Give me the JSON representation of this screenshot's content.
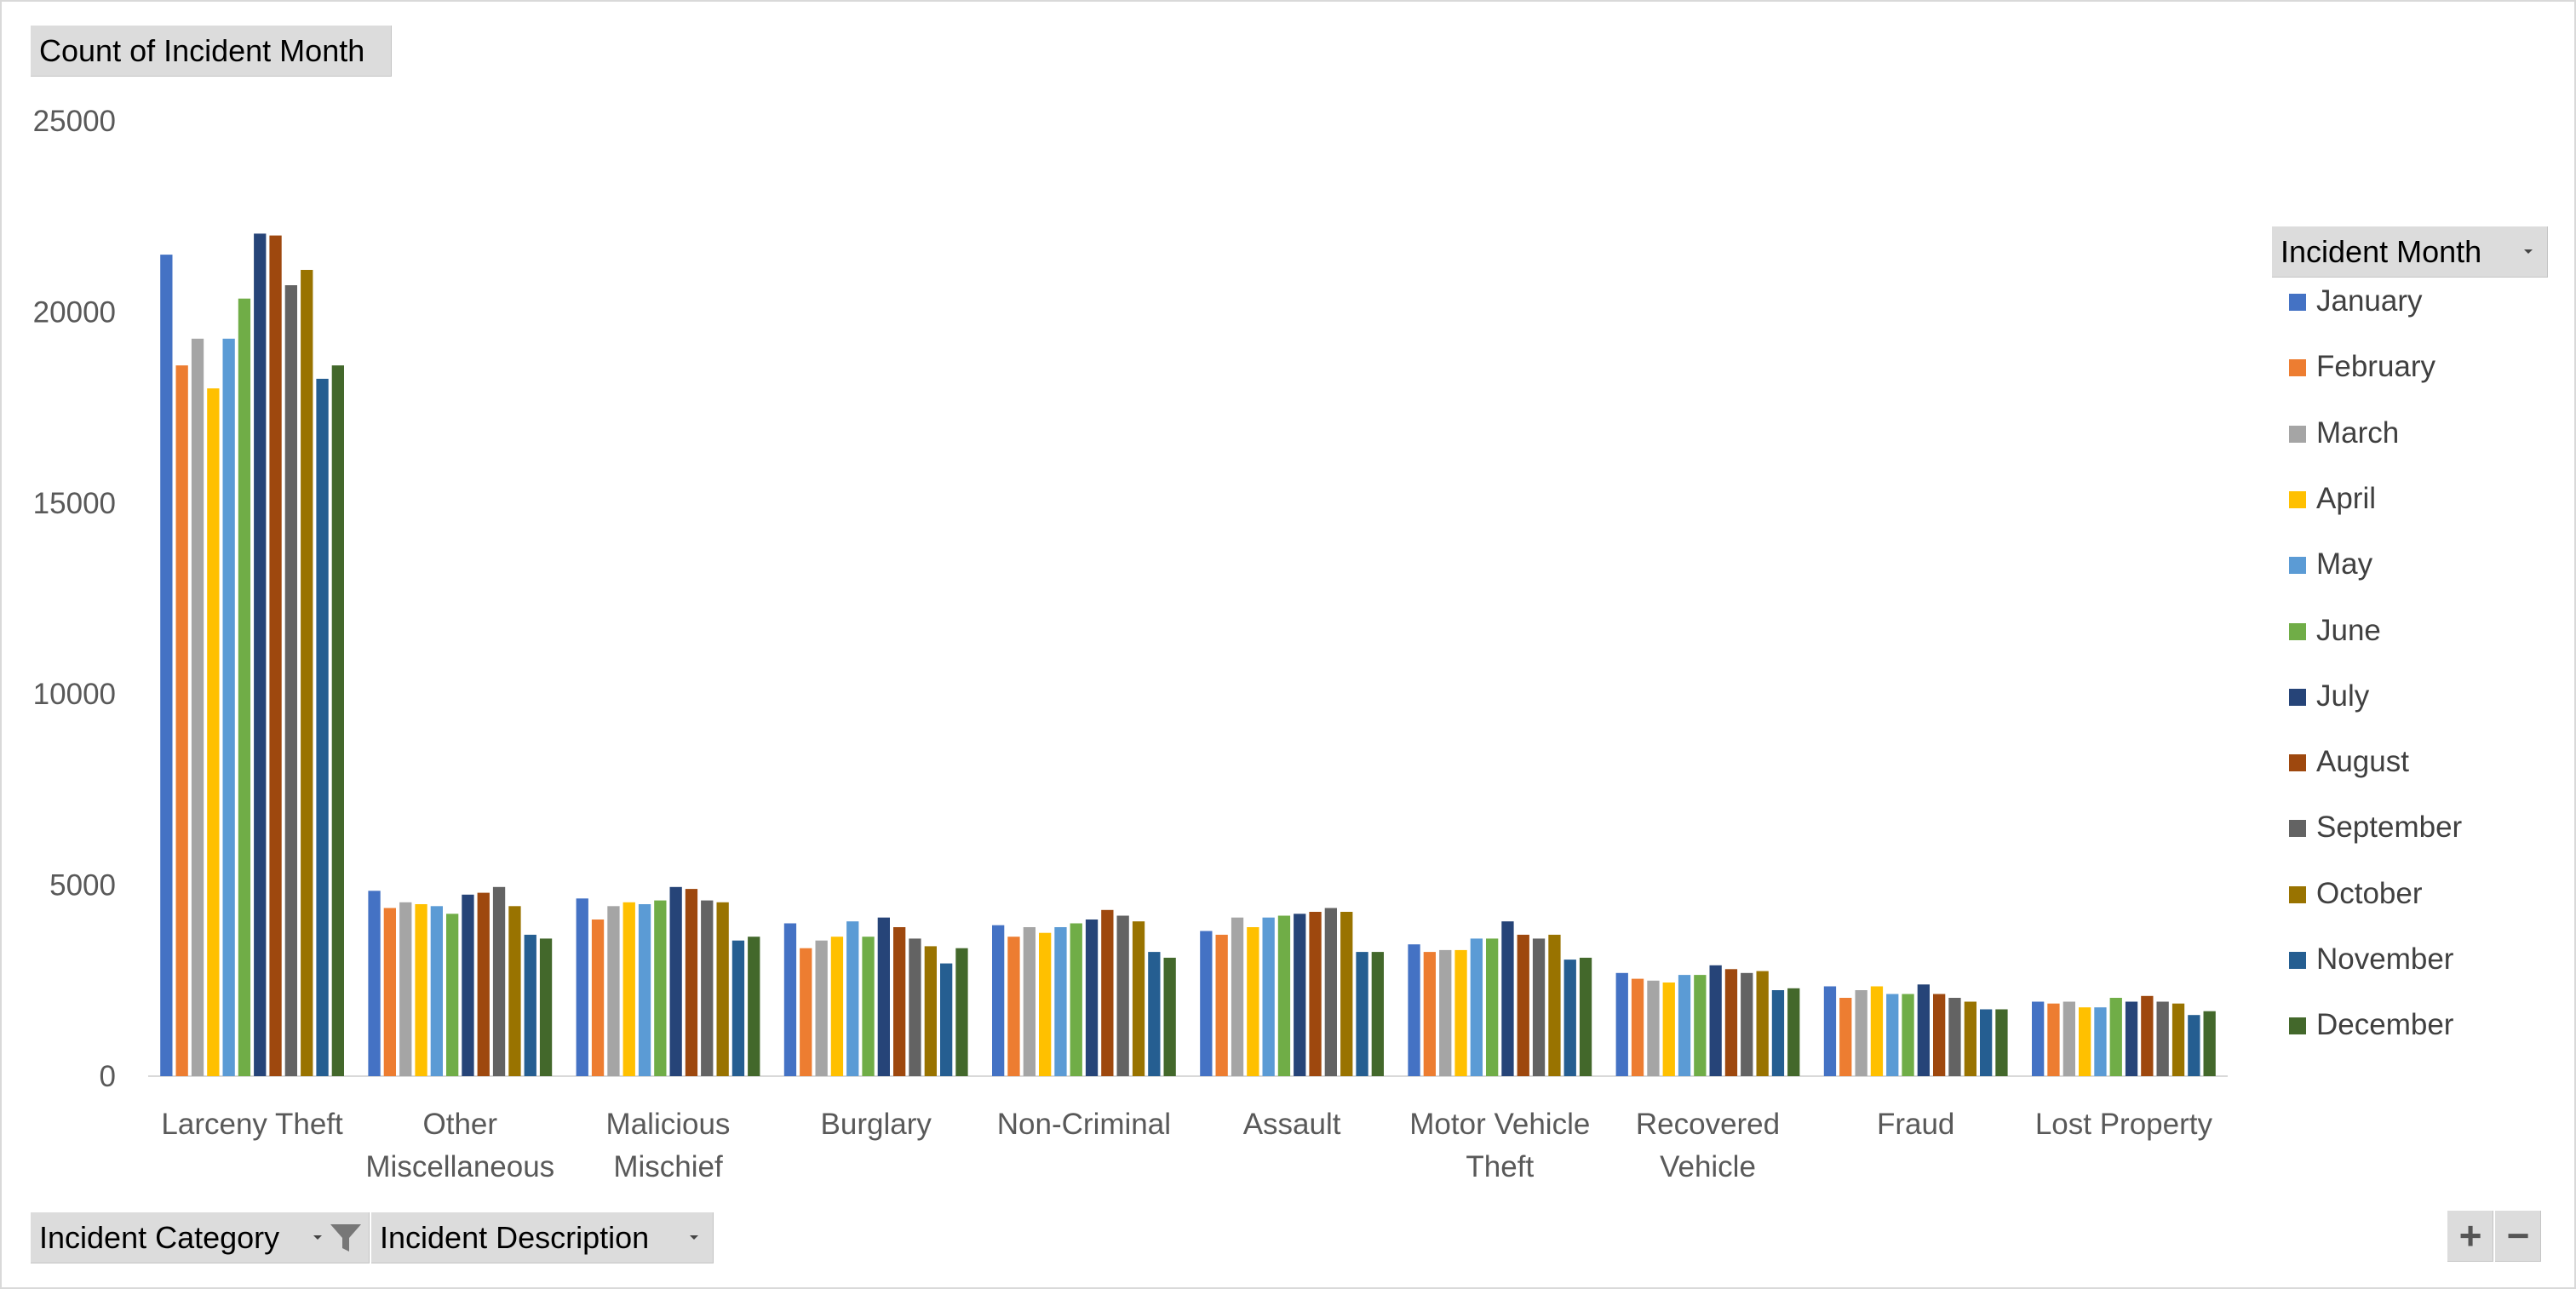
{
  "buttons": {
    "values_field": "Count of Incident Month",
    "legend_field": "Incident Month",
    "axis_field_1": "Incident Category",
    "axis_field_2": "Incident Description",
    "zoom_in": "+",
    "zoom_out": "−"
  },
  "chart_data": {
    "type": "bar",
    "title": "",
    "xlabel": "",
    "ylabel": "",
    "ylim": [
      0,
      25000
    ],
    "yticks": [
      0,
      5000,
      10000,
      15000,
      20000,
      25000
    ],
    "grid": false,
    "legend_position": "right",
    "categories": [
      [
        "Larceny Theft"
      ],
      [
        "Other",
        "Miscellaneous"
      ],
      [
        "Malicious",
        "Mischief"
      ],
      [
        "Burglary"
      ],
      [
        "Non-Criminal"
      ],
      [
        "Assault"
      ],
      [
        "Motor Vehicle",
        "Theft"
      ],
      [
        "Recovered",
        "Vehicle"
      ],
      [
        "Fraud"
      ],
      [
        "Lost Property"
      ]
    ],
    "series": [
      {
        "name": "January",
        "color": "#4472C4",
        "values": [
          21500,
          4850,
          4650,
          4000,
          3950,
          3800,
          3450,
          2700,
          2350,
          1950
        ]
      },
      {
        "name": "February",
        "color": "#ED7D31",
        "values": [
          18600,
          4400,
          4100,
          3350,
          3650,
          3700,
          3250,
          2550,
          2050,
          1900
        ]
      },
      {
        "name": "March",
        "color": "#A5A5A5",
        "values": [
          19300,
          4550,
          4450,
          3550,
          3900,
          4150,
          3300,
          2500,
          2250,
          1950
        ]
      },
      {
        "name": "April",
        "color": "#FFC000",
        "values": [
          18000,
          4500,
          4550,
          3650,
          3750,
          3900,
          3300,
          2450,
          2350,
          1800
        ]
      },
      {
        "name": "May",
        "color": "#5B9BD5",
        "values": [
          19300,
          4450,
          4500,
          4050,
          3900,
          4150,
          3600,
          2650,
          2150,
          1800
        ]
      },
      {
        "name": "June",
        "color": "#70AD47",
        "values": [
          20350,
          4250,
          4600,
          3650,
          4000,
          4200,
          3600,
          2650,
          2150,
          2050
        ]
      },
      {
        "name": "July",
        "color": "#264478",
        "values": [
          22050,
          4750,
          4950,
          4150,
          4100,
          4250,
          4050,
          2900,
          2400,
          1950
        ]
      },
      {
        "name": "August",
        "color": "#9E480E",
        "values": [
          22000,
          4800,
          4900,
          3900,
          4350,
          4300,
          3700,
          2800,
          2150,
          2100
        ]
      },
      {
        "name": "September",
        "color": "#636363",
        "values": [
          20700,
          4950,
          4600,
          3600,
          4200,
          4400,
          3600,
          2700,
          2050,
          1950
        ]
      },
      {
        "name": "October",
        "color": "#997300",
        "values": [
          21100,
          4450,
          4550,
          3400,
          4050,
          4300,
          3700,
          2750,
          1950,
          1900
        ]
      },
      {
        "name": "November",
        "color": "#255E91",
        "values": [
          18250,
          3700,
          3550,
          2950,
          3250,
          3250,
          3050,
          2250,
          1750,
          1600
        ]
      },
      {
        "name": "December",
        "color": "#43682B",
        "values": [
          18600,
          3600,
          3650,
          3350,
          3100,
          3250,
          3100,
          2300,
          1750,
          1700
        ]
      }
    ]
  }
}
